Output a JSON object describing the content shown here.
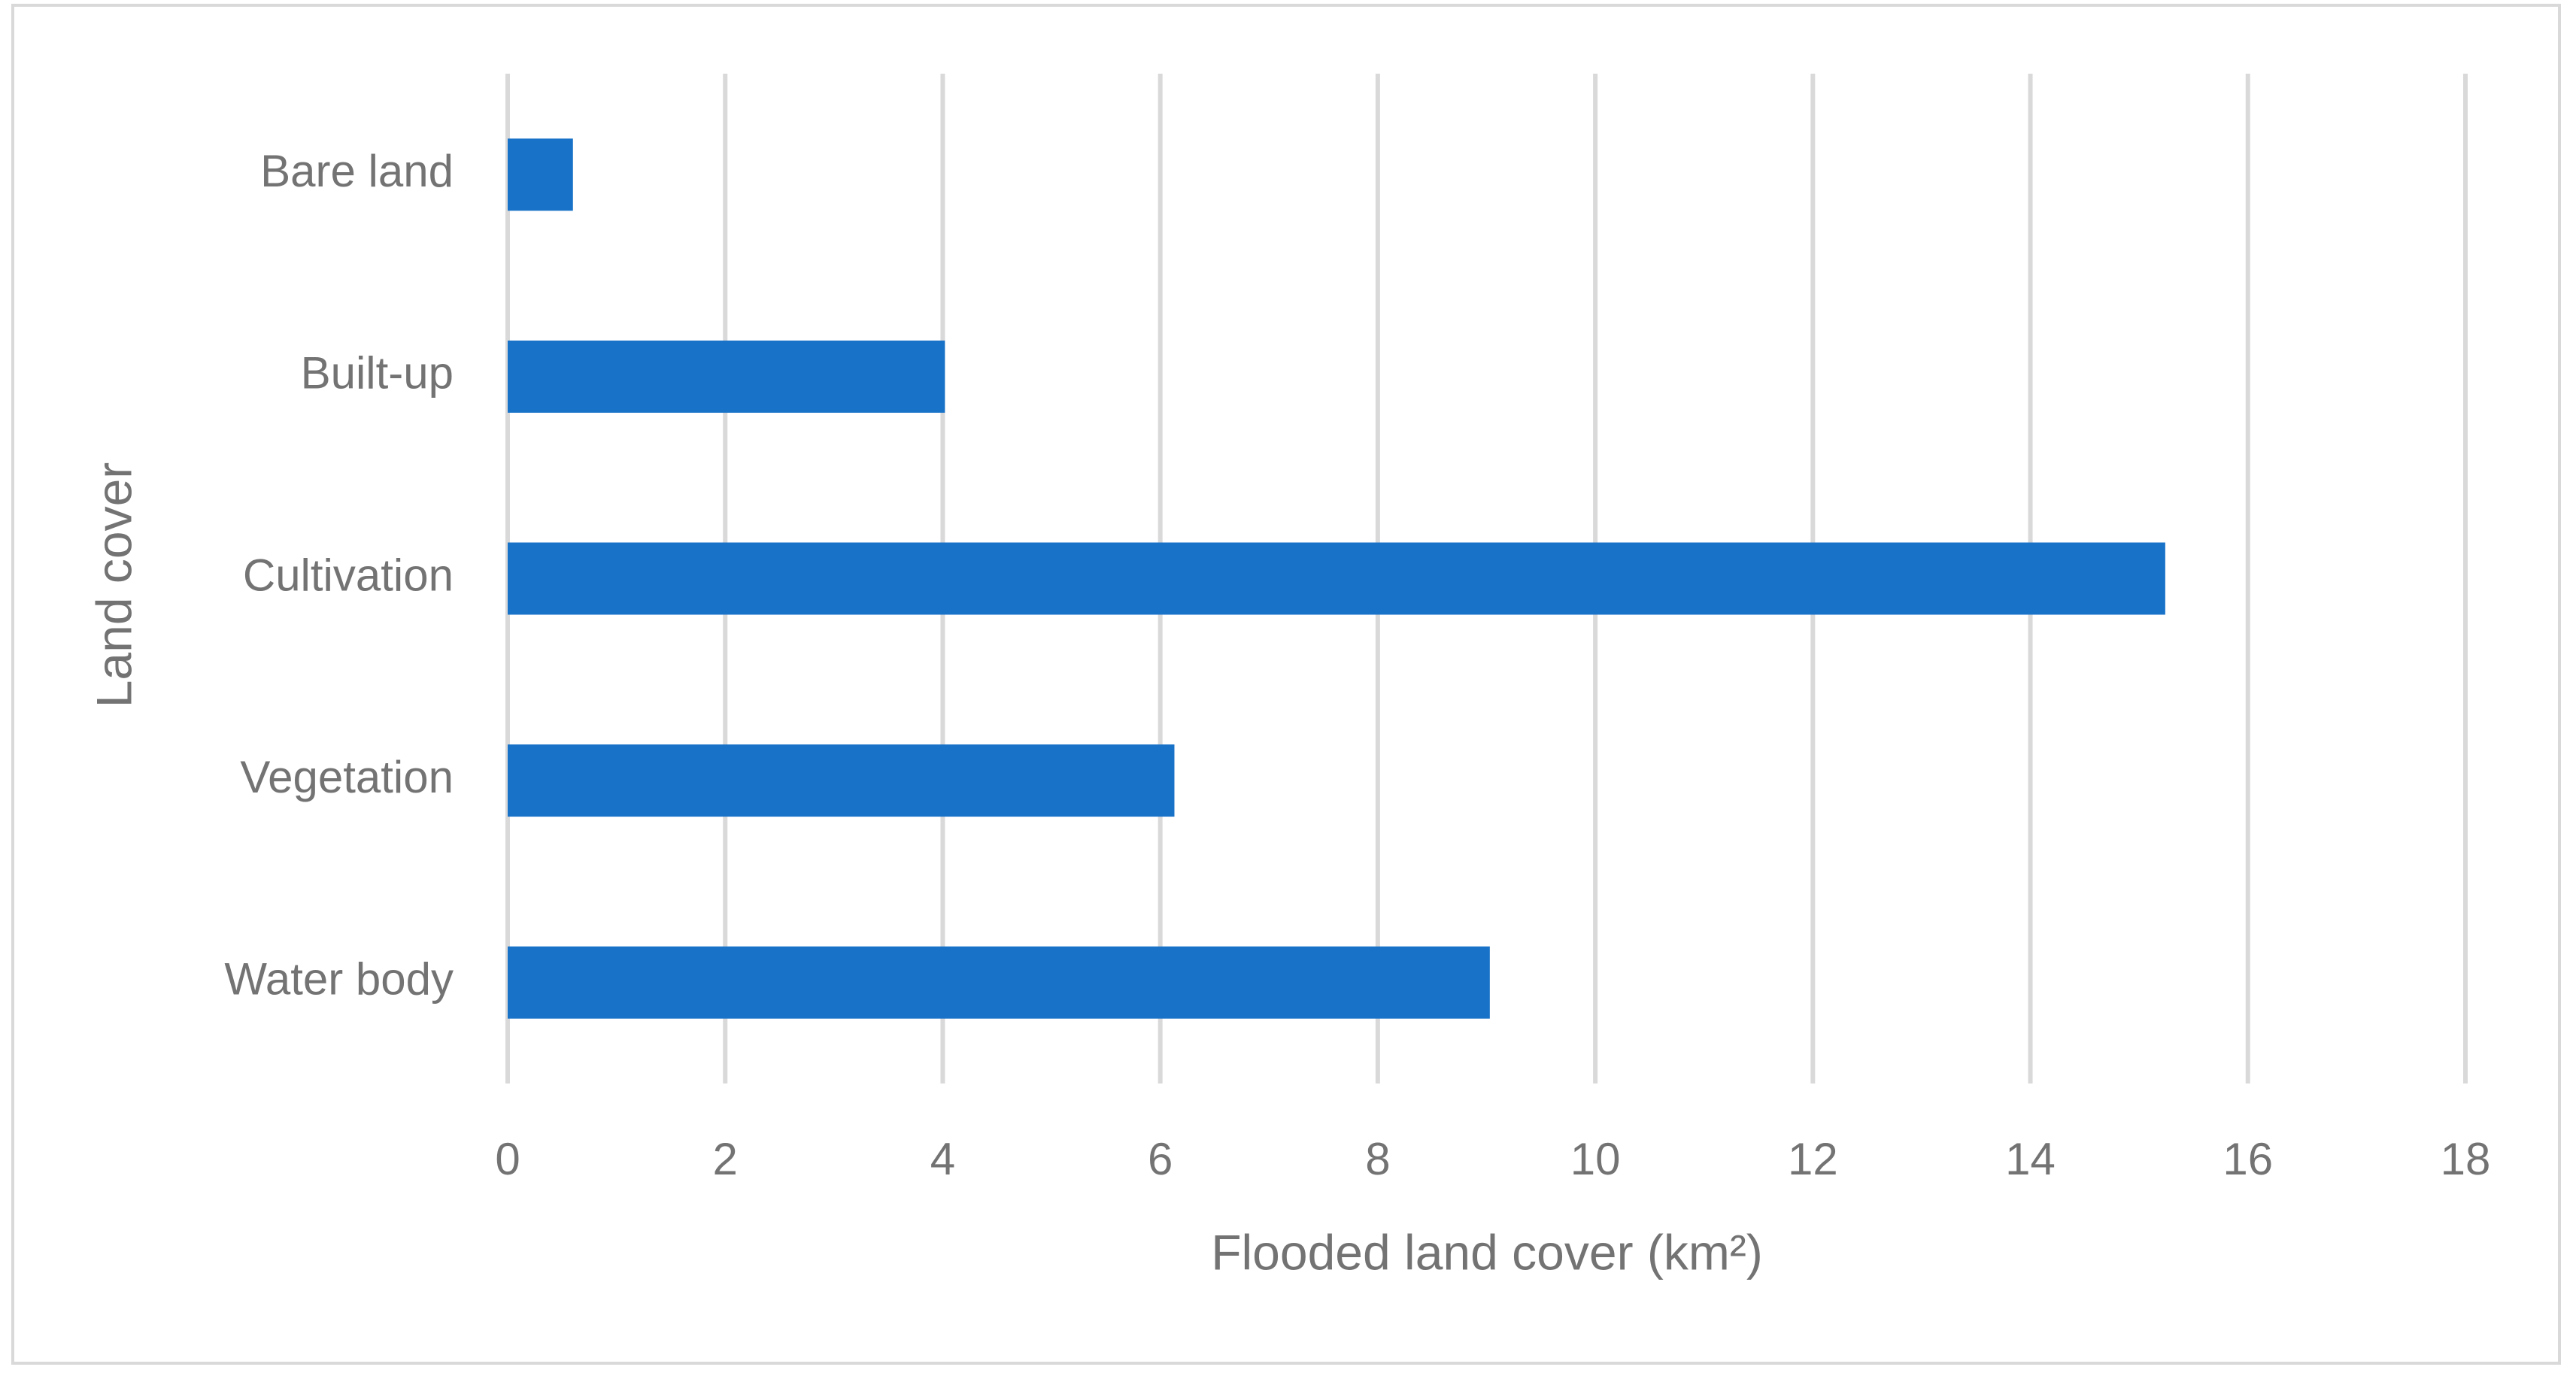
{
  "chart_data": {
    "type": "bar",
    "orientation": "horizontal",
    "categories": [
      "Bare land",
      "Built-up",
      "Cultivation",
      "Vegetation",
      "Water body"
    ],
    "values": [
      0.6,
      4.02,
      15.24,
      6.13,
      9.03
    ],
    "color": "#1872c8",
    "x_label": "Flooded land cover (km²)",
    "y_label": "Land cover",
    "xlim": [
      0,
      18
    ],
    "xticks": [
      0,
      2,
      4,
      6,
      8,
      10,
      12,
      14,
      16,
      18
    ],
    "grid": true
  }
}
